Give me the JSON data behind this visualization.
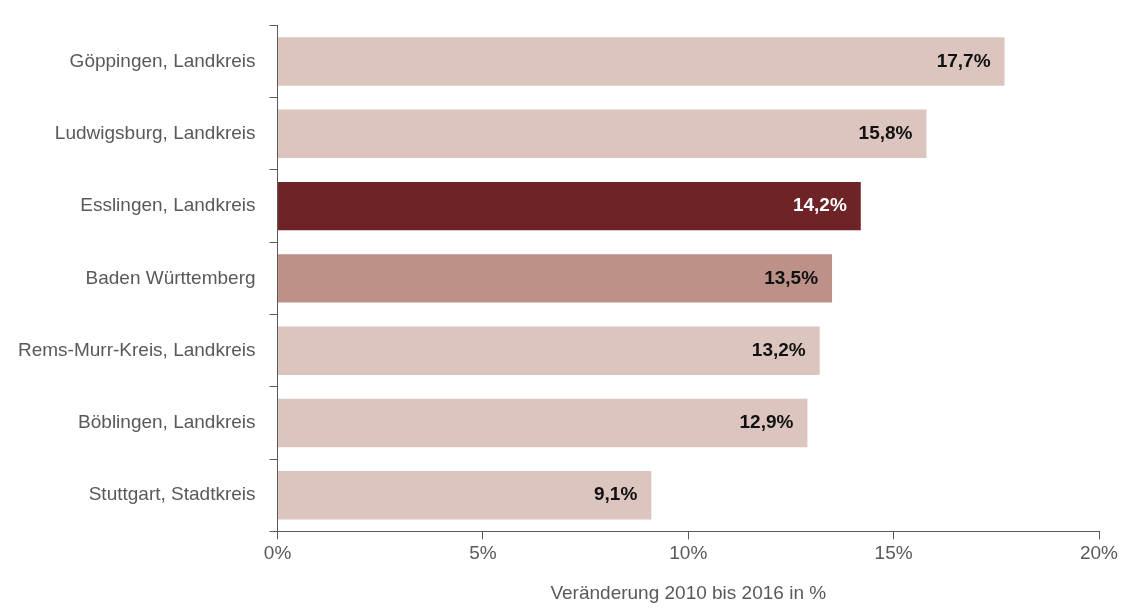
{
  "chart_data": {
    "type": "bar",
    "orientation": "horizontal",
    "xlabel": "Veränderung 2010 bis 2016 in %",
    "categories": [
      "Göppingen, Landkreis",
      "Ludwigsburg, Landkreis",
      "Esslingen, Landkreis",
      "Baden Württemberg",
      "Rems-Murr-Kreis, Landkreis",
      "Böblingen, Landkreis",
      "Stuttgart, Stadtkreis"
    ],
    "values": [
      17.7,
      15.8,
      14.2,
      13.5,
      13.2,
      12.9,
      9.1
    ],
    "colors": [
      "#dcc5bf",
      "#dcc5bf",
      "#6e2326",
      "#bd9188",
      "#dcc5bf",
      "#dcc5bf",
      "#dcc5bf"
    ],
    "value_labels": [
      "17,7%",
      "15,8%",
      "14,2%",
      "13,5%",
      "13,2%",
      "12,9%",
      "9,1%"
    ],
    "xlim": [
      0,
      20
    ],
    "xticks": [
      {
        "value": 0,
        "label": "0%"
      },
      {
        "value": 5,
        "label": "5%"
      },
      {
        "value": 10,
        "label": "10%"
      },
      {
        "value": 15,
        "label": "15%"
      },
      {
        "value": 20,
        "label": "20%"
      }
    ],
    "grid": false,
    "legend": false
  }
}
